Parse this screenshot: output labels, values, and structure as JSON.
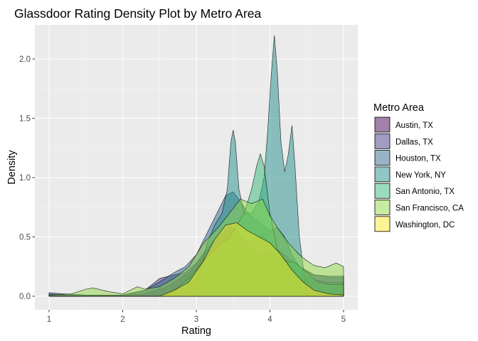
{
  "chart_data": {
    "type": "area",
    "title": "Glassdoor Rating Density Plot by Metro Area",
    "xlabel": "Rating",
    "ylabel": "Density",
    "xlim": [
      1,
      5
    ],
    "ylim": [
      0,
      2.2
    ],
    "x_ticks": [
      "1",
      "2",
      "3",
      "4",
      "5"
    ],
    "y_ticks": [
      "0.0",
      "0.5",
      "1.0",
      "1.5",
      "2.0"
    ],
    "grid": true,
    "legend": {
      "title": "Metro Area",
      "position": "right"
    },
    "series": [
      {
        "name": "Austin, TX",
        "color": "#440154",
        "points": [
          [
            1,
            0.01
          ],
          [
            1.5,
            0.01
          ],
          [
            2.0,
            0.01
          ],
          [
            2.3,
            0.02
          ],
          [
            2.6,
            0.08
          ],
          [
            2.9,
            0.2
          ],
          [
            3.1,
            0.35
          ],
          [
            3.3,
            0.5
          ],
          [
            3.45,
            0.6
          ],
          [
            3.55,
            0.55
          ],
          [
            3.7,
            0.42
          ],
          [
            3.85,
            0.35
          ],
          [
            4.0,
            0.38
          ],
          [
            4.15,
            0.34
          ],
          [
            4.3,
            0.25
          ],
          [
            4.45,
            0.18
          ],
          [
            4.6,
            0.14
          ],
          [
            4.8,
            0.12
          ],
          [
            5.0,
            0.12
          ]
        ]
      },
      {
        "name": "Dallas, TX",
        "color": "#443A83",
        "points": [
          [
            1,
            0.02
          ],
          [
            1.2,
            0.01
          ],
          [
            1.5,
            0.01
          ],
          [
            2.0,
            0.01
          ],
          [
            2.3,
            0.05
          ],
          [
            2.5,
            0.15
          ],
          [
            2.7,
            0.18
          ],
          [
            2.85,
            0.2
          ],
          [
            3.0,
            0.28
          ],
          [
            3.2,
            0.45
          ],
          [
            3.4,
            0.55
          ],
          [
            3.5,
            0.58
          ],
          [
            3.6,
            0.5
          ],
          [
            3.7,
            0.45
          ],
          [
            3.8,
            0.5
          ],
          [
            3.9,
            0.52
          ],
          [
            4.0,
            0.45
          ],
          [
            4.2,
            0.35
          ],
          [
            4.4,
            0.25
          ],
          [
            4.6,
            0.18
          ],
          [
            4.8,
            0.16
          ],
          [
            5.0,
            0.16
          ]
        ]
      },
      {
        "name": "Houston, TX",
        "color": "#31688E",
        "points": [
          [
            1,
            0.03
          ],
          [
            1.2,
            0.02
          ],
          [
            1.5,
            0.01
          ],
          [
            2.0,
            0.01
          ],
          [
            2.3,
            0.05
          ],
          [
            2.5,
            0.12
          ],
          [
            2.7,
            0.2
          ],
          [
            2.85,
            0.25
          ],
          [
            3.0,
            0.35
          ],
          [
            3.2,
            0.6
          ],
          [
            3.4,
            0.85
          ],
          [
            3.5,
            0.88
          ],
          [
            3.6,
            0.8
          ],
          [
            3.7,
            0.7
          ],
          [
            3.8,
            0.65
          ],
          [
            3.9,
            0.6
          ],
          [
            4.0,
            0.55
          ],
          [
            4.1,
            0.58
          ],
          [
            4.2,
            0.5
          ],
          [
            4.3,
            0.35
          ],
          [
            4.4,
            0.25
          ],
          [
            4.6,
            0.18
          ],
          [
            4.8,
            0.17
          ],
          [
            5.0,
            0.17
          ]
        ]
      },
      {
        "name": "New York, NY",
        "color": "#21908C",
        "points": [
          [
            1,
            0
          ],
          [
            2.8,
            0
          ],
          [
            2.95,
            0.05
          ],
          [
            3.05,
            0.2
          ],
          [
            3.15,
            0.45
          ],
          [
            3.25,
            0.6
          ],
          [
            3.35,
            0.7
          ],
          [
            3.42,
            0.9
          ],
          [
            3.47,
            1.3
          ],
          [
            3.5,
            1.4
          ],
          [
            3.53,
            1.3
          ],
          [
            3.58,
            0.9
          ],
          [
            3.65,
            0.7
          ],
          [
            3.75,
            0.7
          ],
          [
            3.85,
            0.8
          ],
          [
            3.92,
            1.0
          ],
          [
            3.97,
            1.4
          ],
          [
            4.01,
            1.8
          ],
          [
            4.06,
            2.2
          ],
          [
            4.1,
            1.9
          ],
          [
            4.15,
            1.3
          ],
          [
            4.2,
            1.05
          ],
          [
            4.25,
            1.2
          ],
          [
            4.3,
            1.44
          ],
          [
            4.34,
            1.1
          ],
          [
            4.4,
            0.5
          ],
          [
            4.5,
            0
          ],
          [
            5.0,
            0
          ]
        ]
      },
      {
        "name": "San Antonio, TX",
        "color": "#35B779",
        "points": [
          [
            1,
            0
          ],
          [
            2.5,
            0
          ],
          [
            2.7,
            0.05
          ],
          [
            2.9,
            0.15
          ],
          [
            3.1,
            0.3
          ],
          [
            3.3,
            0.42
          ],
          [
            3.45,
            0.5
          ],
          [
            3.55,
            0.6
          ],
          [
            3.65,
            0.7
          ],
          [
            3.75,
            0.9
          ],
          [
            3.82,
            1.1
          ],
          [
            3.87,
            1.2
          ],
          [
            3.92,
            1.1
          ],
          [
            4.0,
            0.7
          ],
          [
            4.1,
            0.4
          ],
          [
            4.2,
            0.3
          ],
          [
            4.35,
            0.28
          ],
          [
            4.5,
            0.2
          ],
          [
            4.65,
            0.12
          ],
          [
            4.8,
            0.1
          ],
          [
            5.0,
            0.1
          ]
        ]
      },
      {
        "name": "San Francisco, CA",
        "color": "#8FD744",
        "points": [
          [
            1,
            0.01
          ],
          [
            1.3,
            0.02
          ],
          [
            1.5,
            0.06
          ],
          [
            1.6,
            0.07
          ],
          [
            1.8,
            0.04
          ],
          [
            2.0,
            0.02
          ],
          [
            2.1,
            0.05
          ],
          [
            2.2,
            0.08
          ],
          [
            2.3,
            0.06
          ],
          [
            2.5,
            0.08
          ],
          [
            2.7,
            0.15
          ],
          [
            2.9,
            0.25
          ],
          [
            3.1,
            0.45
          ],
          [
            3.3,
            0.58
          ],
          [
            3.45,
            0.7
          ],
          [
            3.6,
            0.82
          ],
          [
            3.75,
            0.78
          ],
          [
            3.9,
            0.82
          ],
          [
            4.0,
            0.68
          ],
          [
            4.1,
            0.58
          ],
          [
            4.25,
            0.45
          ],
          [
            4.4,
            0.35
          ],
          [
            4.5,
            0.3
          ],
          [
            4.6,
            0.26
          ],
          [
            4.75,
            0.24
          ],
          [
            4.9,
            0.28
          ],
          [
            5.0,
            0.25
          ]
        ]
      },
      {
        "name": "Washington, DC",
        "color": "#FDE725",
        "points": [
          [
            1,
            0
          ],
          [
            2.5,
            0
          ],
          [
            2.7,
            0.05
          ],
          [
            2.9,
            0.12
          ],
          [
            3.1,
            0.3
          ],
          [
            3.25,
            0.48
          ],
          [
            3.4,
            0.6
          ],
          [
            3.55,
            0.62
          ],
          [
            3.7,
            0.55
          ],
          [
            3.85,
            0.5
          ],
          [
            4.0,
            0.45
          ],
          [
            4.15,
            0.35
          ],
          [
            4.3,
            0.22
          ],
          [
            4.45,
            0.12
          ],
          [
            4.6,
            0.05
          ],
          [
            4.8,
            0.02
          ],
          [
            5.0,
            0.01
          ]
        ]
      }
    ]
  }
}
